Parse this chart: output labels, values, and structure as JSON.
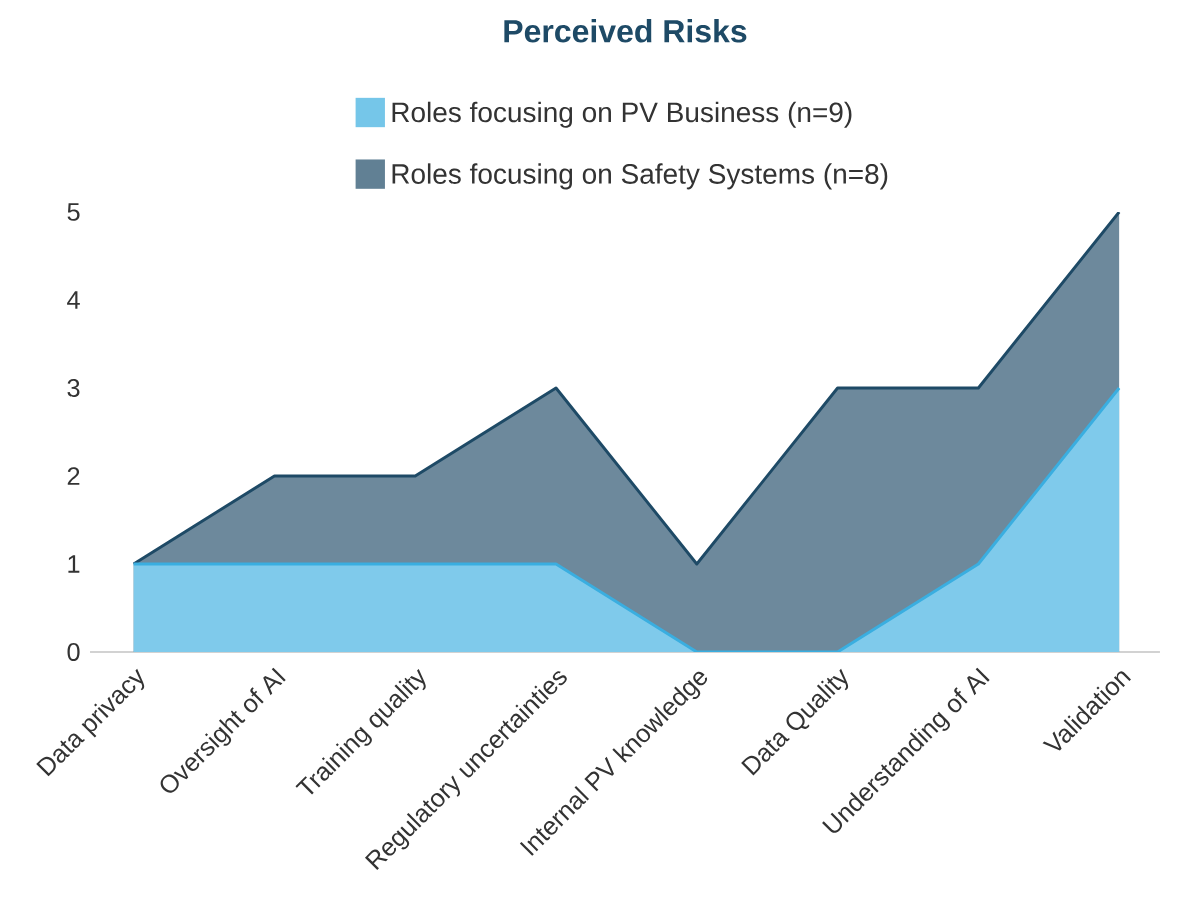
{
  "chart_data": {
    "type": "area",
    "title": "Perceived Risks",
    "categories": [
      "Data privacy",
      "Oversight of AI",
      "Training quality",
      "Regulatory uncertainties",
      "Internal PV knowledge",
      "Data Quality",
      "Understanding of AI",
      "Validation"
    ],
    "series": [
      {
        "name": "Roles focusing on PV Business (n=9)",
        "color": "#3aaee0",
        "values": [
          1,
          1,
          1,
          1,
          0,
          0,
          1,
          3
        ]
      },
      {
        "name": "Roles focusing on Safety Systems (n=8)",
        "color": "#1e4a66",
        "values": [
          1,
          2,
          2,
          3,
          1,
          3,
          3,
          5
        ]
      }
    ],
    "ylim": [
      0,
      5
    ],
    "yticks": [
      0,
      1,
      2,
      3,
      4,
      5
    ],
    "grid": false,
    "legend": "top"
  }
}
